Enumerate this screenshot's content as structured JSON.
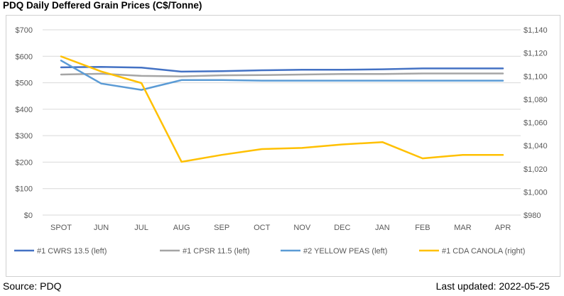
{
  "title": "PDQ Daily Deffered Grain Prices (C$/Tonne)",
  "footer": {
    "source": "Source: PDQ",
    "updated": "Last updated: 2022-05-25"
  },
  "chart_data": {
    "type": "line",
    "categories": [
      "SPOT",
      "JUN",
      "JUL",
      "AUG",
      "SEP",
      "OCT",
      "NOV",
      "DEC",
      "JAN",
      "FEB",
      "MAR",
      "APR"
    ],
    "y_left": {
      "ylim": [
        0,
        700
      ],
      "ticks": [
        0,
        100,
        200,
        300,
        400,
        500,
        600,
        700
      ],
      "tick_labels": [
        "$0",
        "$100",
        "$200",
        "$300",
        "$400",
        "$500",
        "$600",
        "$700"
      ]
    },
    "y_right": {
      "ylim": [
        980,
        1140
      ],
      "ticks": [
        980,
        1000,
        1020,
        1040,
        1060,
        1080,
        1100,
        1120,
        1140
      ],
      "tick_labels": [
        "$980",
        "$1,000",
        "$1,020",
        "$1,040",
        "$1,060",
        "$1,080",
        "$1,100",
        "$1,120",
        "$1,140"
      ]
    },
    "grid": true,
    "legend_position": "bottom",
    "series": [
      {
        "name": "#1 CWRS 13.5 (left)",
        "axis": "left",
        "color": "#4472c4",
        "values": [
          558,
          560,
          557,
          542,
          544,
          547,
          549,
          549,
          551,
          554,
          554,
          554
        ]
      },
      {
        "name": "#1 CPSR 11.5 (left)",
        "axis": "left",
        "color": "#a5a5a5",
        "values": [
          531,
          534,
          526,
          524,
          528,
          529,
          531,
          533,
          533,
          535,
          535,
          535
        ]
      },
      {
        "name": "#2 YELLOW PEAS (left)",
        "axis": "left",
        "color": "#5b9bd5",
        "values": [
          584,
          497,
          473,
          510,
          510,
          508,
          508,
          508,
          508,
          508,
          508,
          508
        ]
      },
      {
        "name": "#1 CDA CANOLA (right)",
        "axis": "right",
        "color": "#ffc000",
        "values": [
          1117,
          1104,
          1094,
          1026,
          1032,
          1037,
          1038,
          1041,
          1043,
          1029,
          1032,
          1032
        ]
      }
    ]
  }
}
